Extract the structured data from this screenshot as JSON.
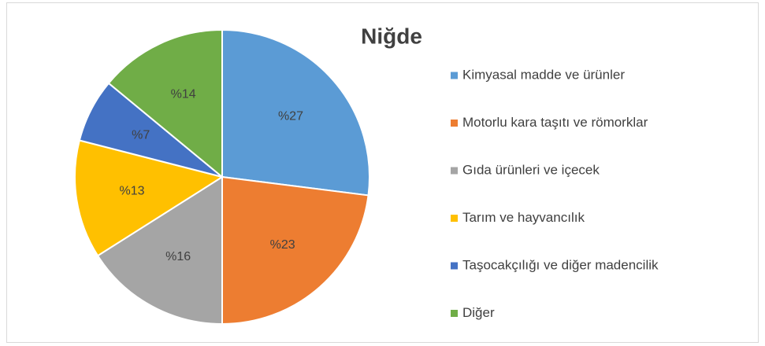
{
  "chart_data": {
    "type": "pie",
    "title": "Niğde",
    "categories": [
      "Kimyasal madde ve ürünler",
      "Motorlu kara taşıtı ve römorklar",
      "Gıda ürünleri ve içecek",
      "Tarım ve hayvancılık",
      "Taşocakçılığı ve diğer madencilik",
      "Diğer"
    ],
    "values": [
      27,
      23,
      16,
      13,
      7,
      14
    ],
    "value_labels": [
      "%27",
      "%23",
      "%16",
      "%13",
      "%7",
      "%14"
    ],
    "colors": [
      "#5b9bd5",
      "#ed7d31",
      "#a5a5a5",
      "#ffc000",
      "#4472c4",
      "#70ad47"
    ],
    "legend": "right"
  }
}
